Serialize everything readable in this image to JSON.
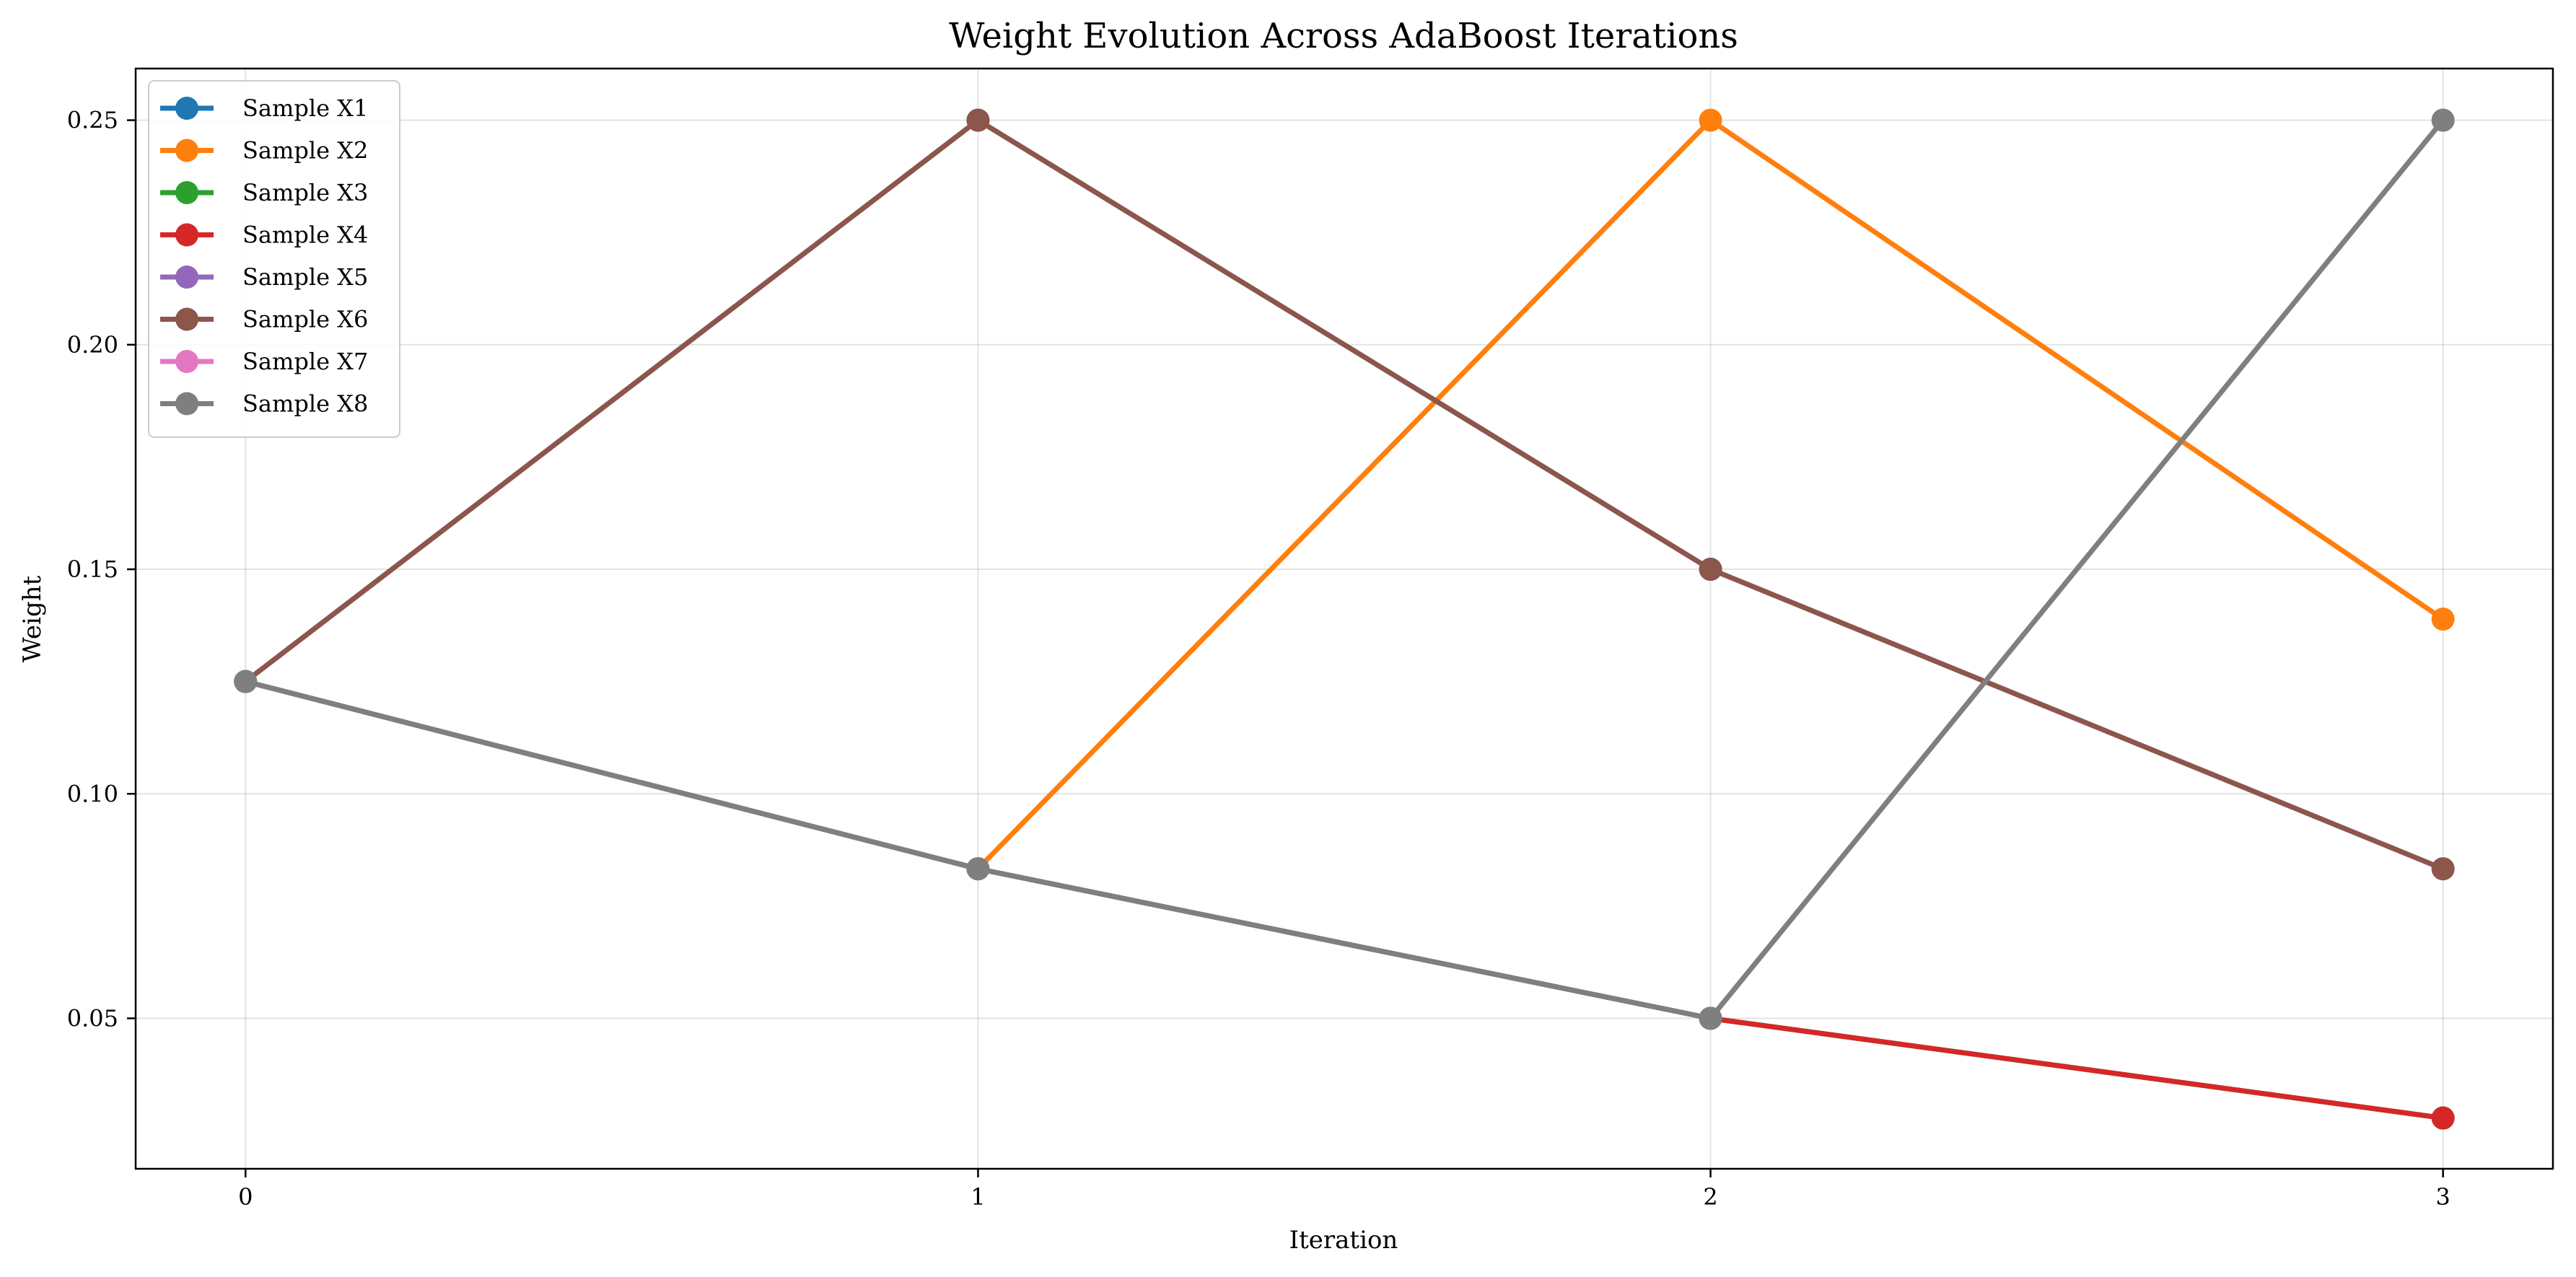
{
  "chart_data": {
    "type": "line",
    "title": "Weight Evolution Across AdaBoost Iterations",
    "xlabel": "Iteration",
    "ylabel": "Weight",
    "x": [
      0,
      1,
      2,
      3
    ],
    "xlim": [
      -0.15,
      3.15
    ],
    "ylim": [
      0.0165,
      0.2615
    ],
    "yticks": [
      0.05,
      0.1,
      0.15,
      0.2,
      0.25
    ],
    "ytick_labels": [
      "0.05",
      "0.10",
      "0.15",
      "0.20",
      "0.25"
    ],
    "xtick_labels": [
      "0",
      "1",
      "2",
      "3"
    ],
    "grid": true,
    "legend_position": "top-left",
    "series": [
      {
        "name": "Sample X1",
        "color": "#1f77b4",
        "values": [
          0.125,
          0.0833,
          0.05,
          0.0278
        ]
      },
      {
        "name": "Sample X2",
        "color": "#ff7f0e",
        "values": [
          0.125,
          0.0833,
          0.25,
          0.1389
        ]
      },
      {
        "name": "Sample X3",
        "color": "#2ca02c",
        "values": [
          0.125,
          0.0833,
          0.05,
          0.0278
        ]
      },
      {
        "name": "Sample X4",
        "color": "#d62728",
        "values": [
          0.125,
          0.0833,
          0.05,
          0.0278
        ]
      },
      {
        "name": "Sample X5",
        "color": "#9467bd",
        "values": [
          0.125,
          0.25,
          0.15,
          0.0833
        ]
      },
      {
        "name": "Sample X6",
        "color": "#8c564b",
        "values": [
          0.125,
          0.25,
          0.15,
          0.0833
        ]
      },
      {
        "name": "Sample X7",
        "color": "#e377c2",
        "values": [
          0.125,
          0.0833,
          0.05,
          0.25
        ]
      },
      {
        "name": "Sample X8",
        "color": "#7f7f7f",
        "values": [
          0.125,
          0.0833,
          0.05,
          0.25
        ]
      }
    ]
  }
}
